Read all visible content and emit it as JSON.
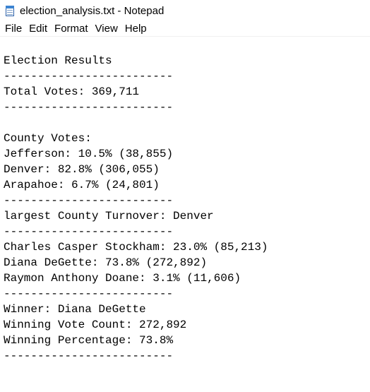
{
  "window": {
    "title": "election_analysis.txt - Notepad"
  },
  "menu": {
    "file": "File",
    "edit": "Edit",
    "format": "Format",
    "view": "View",
    "help": "Help"
  },
  "document": {
    "lines": [
      "",
      "Election Results",
      "-------------------------",
      "Total Votes: 369,711",
      "-------------------------",
      "",
      "County Votes:",
      "Jefferson: 10.5% (38,855)",
      "Denver: 82.8% (306,055)",
      "Arapahoe: 6.7% (24,801)",
      "-------------------------",
      "largest County Turnover: Denver",
      "-------------------------",
      "Charles Casper Stockham: 23.0% (85,213)",
      "Diana DeGette: 73.8% (272,892)",
      "Raymon Anthony Doane: 3.1% (11,606)",
      "-------------------------",
      "Winner: Diana DeGette",
      "Winning Vote Count: 272,892",
      "Winning Percentage: 73.8%",
      "-------------------------"
    ]
  },
  "icons": {
    "app": "notepad-icon"
  }
}
